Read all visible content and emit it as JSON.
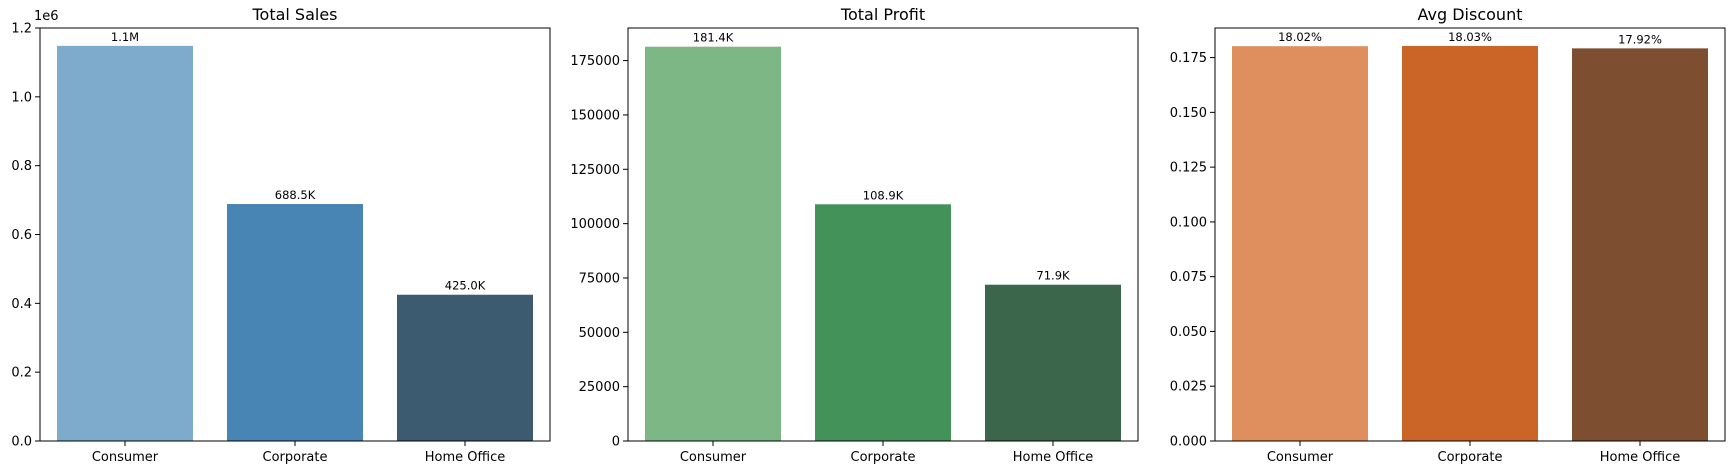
{
  "chart_data": [
    {
      "type": "bar",
      "title": "Total Sales",
      "categories": [
        "Consumer",
        "Corporate",
        "Home Office"
      ],
      "values": [
        1148061,
        688494,
        424982
      ],
      "value_labels": [
        "1.1M",
        "688.5K",
        "425.0K"
      ],
      "colors": [
        "#7eaacb",
        "#4884b4",
        "#3c5b70"
      ],
      "ylim": [
        0,
        1200000
      ],
      "yticks": [
        0,
        200000,
        400000,
        600000,
        800000,
        1000000,
        1200000
      ],
      "ytick_labels": [
        "0.0",
        "0.2",
        "0.4",
        "0.6",
        "0.8",
        "1.0",
        "1.2"
      ],
      "offset_text": "1e6",
      "xlabel": "",
      "ylabel": "",
      "grid": false
    },
    {
      "type": "bar",
      "title": "Total Profit",
      "categories": [
        "Consumer",
        "Corporate",
        "Home Office"
      ],
      "values": [
        181400,
        108900,
        71900
      ],
      "value_labels": [
        "181.4K",
        "108.9K",
        "71.9K"
      ],
      "colors": [
        "#7db785",
        "#43925a",
        "#3c664b"
      ],
      "ylim": [
        0,
        190000
      ],
      "yticks": [
        0,
        25000,
        50000,
        75000,
        100000,
        125000,
        150000,
        175000
      ],
      "ytick_labels": [
        "0",
        "25000",
        "50000",
        "75000",
        "100000",
        "125000",
        "150000",
        "175000"
      ],
      "offset_text": "",
      "xlabel": "",
      "ylabel": "",
      "grid": false
    },
    {
      "type": "bar",
      "title": "Avg Discount",
      "categories": [
        "Consumer",
        "Corporate",
        "Home Office"
      ],
      "values": [
        0.1802,
        0.1803,
        0.1792
      ],
      "value_labels": [
        "18.02%",
        "18.03%",
        "17.92%"
      ],
      "colors": [
        "#de8f5d",
        "#cb6427",
        "#7e4e30"
      ],
      "ylim": [
        0,
        0.1885
      ],
      "yticks": [
        0,
        0.025,
        0.05,
        0.075,
        0.1,
        0.125,
        0.15,
        0.175
      ],
      "ytick_labels": [
        "0.000",
        "0.025",
        "0.050",
        "0.075",
        "0.100",
        "0.125",
        "0.150",
        "0.175"
      ],
      "offset_text": "",
      "xlabel": "",
      "ylabel": "",
      "grid": false
    }
  ]
}
